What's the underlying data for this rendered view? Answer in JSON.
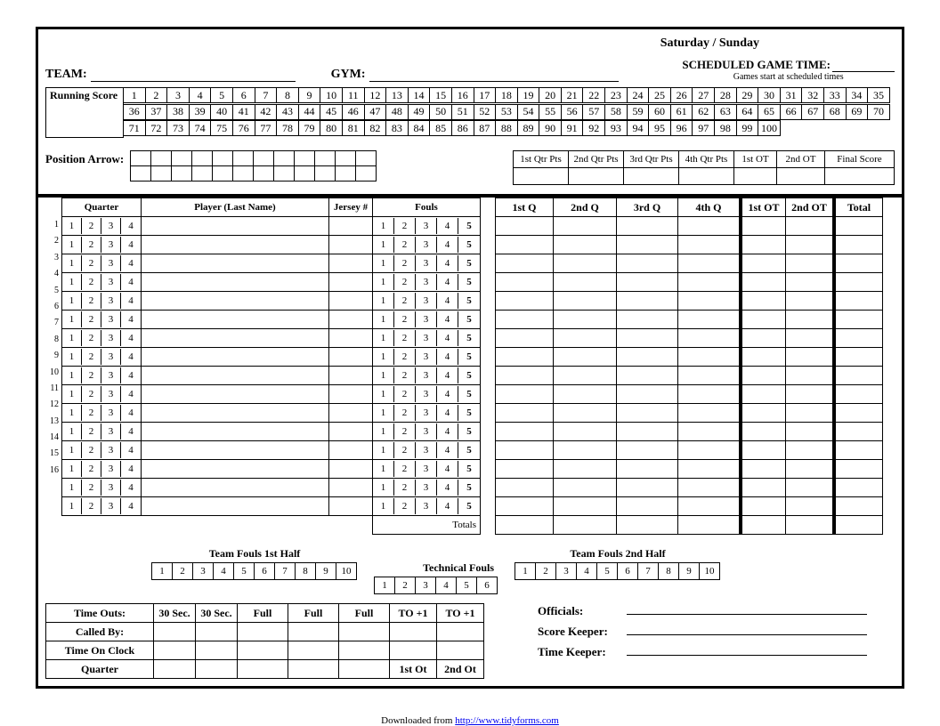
{
  "header": {
    "day_label": "Saturday   /   Sunday",
    "team_label": "TEAM",
    "gym_label": "GYM",
    "sched_label": "SCHEDULED GAME TIME",
    "sched_note": "Games start at scheduled times"
  },
  "running_score": {
    "label": "Running Score",
    "max": 100
  },
  "position_arrow": {
    "label": "Position Arrow:",
    "cells": 12
  },
  "qtr_pts": {
    "headers": [
      "1st Qtr Pts",
      "2nd Qtr Pts",
      "3rd Qtr Pts",
      "4th Qtr Pts",
      "1st OT",
      "2nd OT",
      "Final Score"
    ]
  },
  "roster_headers": {
    "quarter": "Quarter",
    "player": "Player (Last Name)",
    "jersey": "Jersey #",
    "fouls": "Fouls"
  },
  "quarters": [
    "1",
    "2",
    "3",
    "4"
  ],
  "fouls": [
    "1",
    "2",
    "3",
    "4",
    "5"
  ],
  "player_rows": 16,
  "points_headers": [
    "1st Q",
    "2nd Q",
    "3rd Q",
    "4th Q",
    "1st OT",
    "2nd OT",
    "Total"
  ],
  "totals_label": "Totals",
  "team_fouls": {
    "first_half": "Team Fouls 1st Half",
    "second_half": "Team Fouls 2nd Half",
    "technical": "Technical Fouls",
    "tf_count": 10,
    "tech_count": 6
  },
  "timeouts": {
    "rows": [
      "Time Outs:",
      "Called By:",
      "Time On Clock",
      "Quarter"
    ],
    "cols": [
      "30 Sec.",
      "30 Sec.",
      "Full",
      "Full",
      "Full",
      "TO +1",
      "TO +1"
    ],
    "ot_labels": [
      "1st Ot",
      "2nd Ot"
    ]
  },
  "officials": {
    "officials": "Officials:",
    "scorekeeper": "Score Keeper:",
    "timekeeper": "Time Keeper:"
  },
  "footer": {
    "text": "Downloaded from ",
    "link": "http://www.tidyforms.com"
  }
}
